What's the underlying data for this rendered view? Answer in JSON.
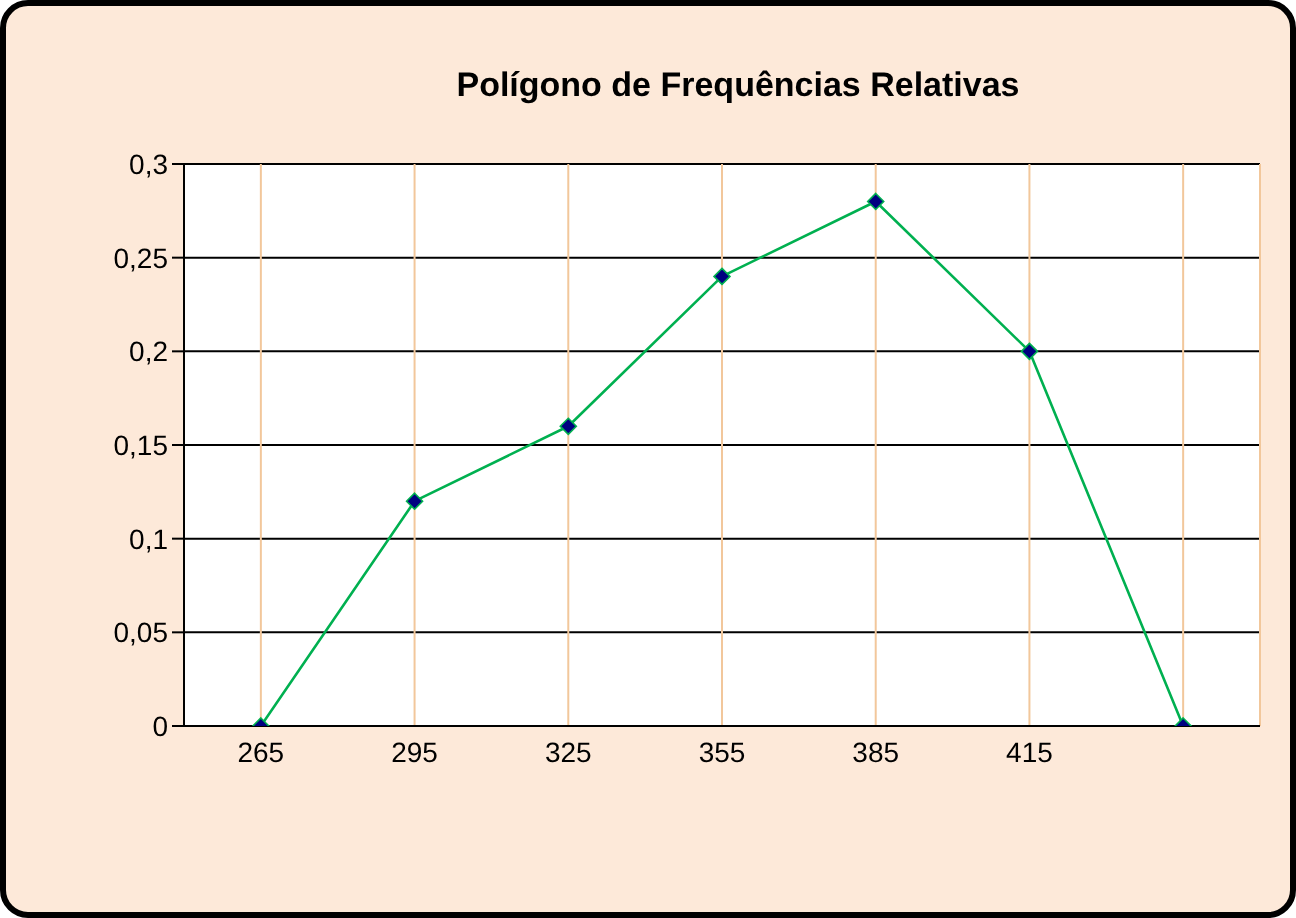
{
  "chart_data": {
    "type": "line",
    "title": "Polígono de Frequências Relativas",
    "categories": [
      "265",
      "295",
      "325",
      "355",
      "385",
      "415",
      null
    ],
    "series": [
      {
        "color": "#00b050",
        "values": [
          0,
          0.12,
          0.16,
          0.24,
          0.28,
          0.2,
          0
        ]
      }
    ],
    "ylim": [
      0,
      0.3
    ],
    "yticks": [
      0,
      {
        "value": 0.05,
        "label": "0,05"
      },
      {
        "value": 0.1,
        "label": "0,1"
      },
      {
        "value": 0.15,
        "label": "0,15"
      },
      {
        "value": 0.2,
        "label": "0,2"
      },
      {
        "value": 0.25,
        "label": "0,25"
      },
      {
        "value": 0.3,
        "label": "0,3"
      }
    ],
    "grid": true,
    "marker": "diamond",
    "legend": false
  }
}
